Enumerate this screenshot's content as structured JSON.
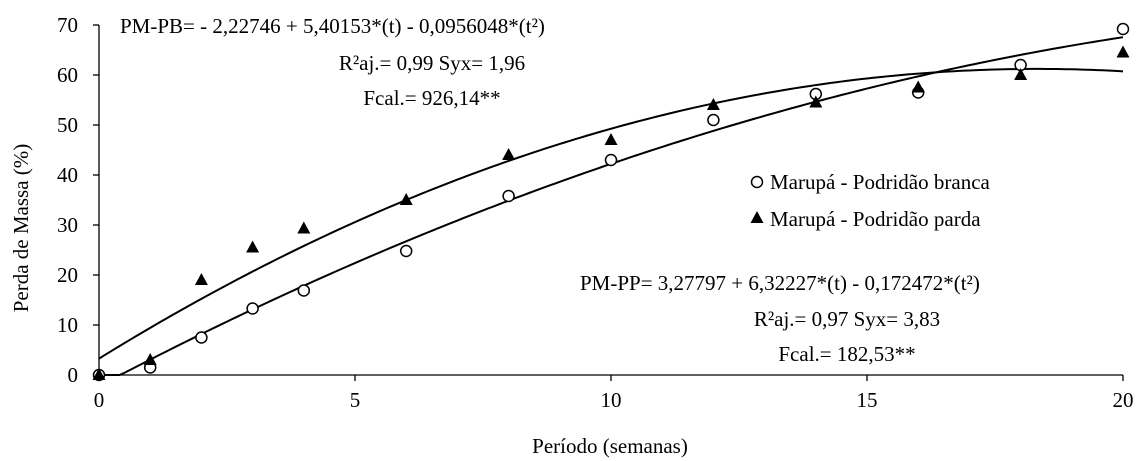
{
  "chart_data": {
    "type": "scatter",
    "title": "",
    "xlabel": "Período (semanas)",
    "ylabel": "Perda de Massa (%)",
    "xlim": [
      0,
      20
    ],
    "ylim": [
      0,
      70
    ],
    "xticks": [
      0,
      5,
      10,
      15,
      20
    ],
    "yticks": [
      0,
      10,
      20,
      30,
      40,
      50,
      60,
      70
    ],
    "grid": false,
    "legend_position": "right",
    "series": [
      {
        "name": "Marupá - Podridão branca",
        "marker": "open-circle",
        "x": [
          0,
          1,
          2,
          3,
          4,
          6,
          8,
          10,
          12,
          14,
          16,
          18,
          20
        ],
        "y": [
          0,
          1.5,
          7.5,
          13.3,
          16.9,
          24.8,
          35.8,
          43.0,
          51.0,
          56.2,
          56.5,
          62.0,
          69.2
        ],
        "fit": {
          "a": -2.22746,
          "b": 5.40153,
          "c": -0.0956048
        }
      },
      {
        "name": "Marupá - Podridão parda",
        "marker": "filled-triangle",
        "x": [
          0,
          1,
          2,
          3,
          4,
          6,
          8,
          10,
          12,
          14,
          16,
          18,
          20
        ],
        "y": [
          0,
          3.0,
          19.0,
          25.5,
          29.3,
          35.0,
          44.0,
          47.0,
          54.0,
          54.5,
          57.5,
          60.0,
          64.5
        ],
        "fit": {
          "a": 3.27797,
          "b": 6.32227,
          "c": -0.172472
        }
      }
    ],
    "annotations": {
      "pb": {
        "equation": "PM-PB= - 2,22746 + 5,40153*(t) - 0,0956048*(t²)",
        "r2": "R²aj.= 0,99  Syx= 1,96",
        "fcal": "Fcal.= 926,14**"
      },
      "pp": {
        "equation": "PM-PP= 3,27797 + 6,32227*(t) - 0,172472*(t²)",
        "r2": "R²aj.= 0,97  Syx= 3,83",
        "fcal": "Fcal.= 182,53**"
      }
    }
  }
}
